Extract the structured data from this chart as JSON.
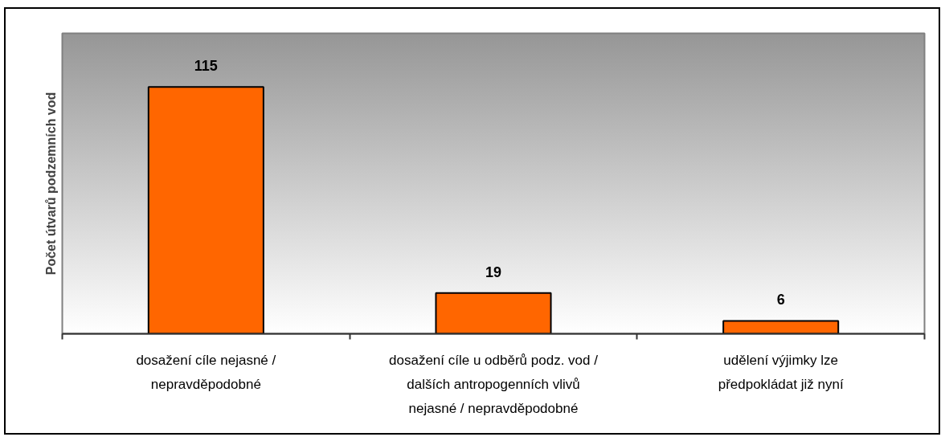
{
  "chart_data": {
    "type": "bar",
    "ylabel": "Počet útvarů podzemních vod",
    "categories": [
      "dosažení cíle nejasné /\nnepravděpodobné",
      "dosažení cíle u odběrů podz. vod /\ndalších antropogenních vlivů\nnejasné / nepravděpodobné",
      "udělení výjimky lze\npředpokládat již nyní"
    ],
    "values": [
      115,
      19,
      6
    ],
    "color": "#ff6600",
    "ylim": [
      0,
      140
    ],
    "data_labels": true,
    "tick_labels": "x"
  }
}
